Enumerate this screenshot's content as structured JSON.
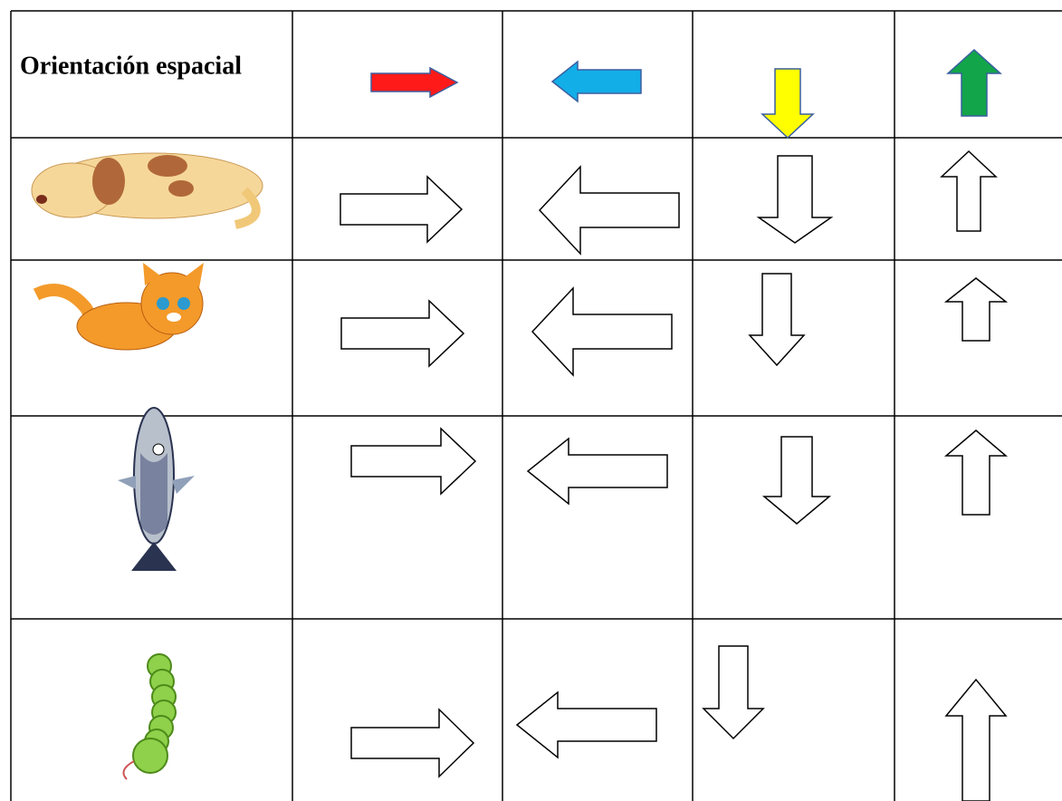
{
  "table": {
    "header": {
      "title": "Orientación espacial"
    }
  }
}
